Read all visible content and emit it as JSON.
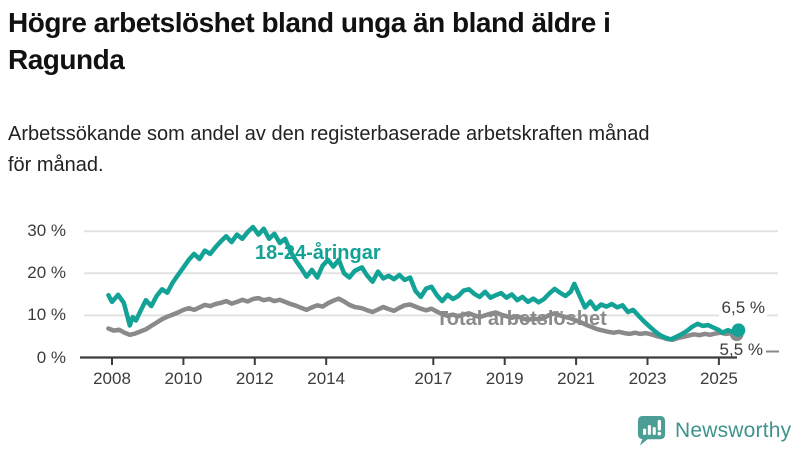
{
  "header": {
    "title_lines": [
      "Högre arbetslöshet bland unga än bland äldre i",
      "Ragunda"
    ],
    "subtitle_lines": [
      "Arbetssökande som andel av den registerbaserade arbetskraften månad",
      "för månad."
    ]
  },
  "chart_data": {
    "type": "line",
    "title": "Högre arbetslöshet bland unga än bland äldre i Ragunda",
    "subtitle": "Arbetssökande som andel av den registerbaserade arbetskraften månad för månad.",
    "unit": "%",
    "grid": "horizontal",
    "legend_position": "inline-labels",
    "axis_color": "#3c3c3c",
    "grid_color": "#e2e2e2",
    "ylim": [
      0,
      32
    ],
    "xlim": [
      2007.8,
      2025.7
    ],
    "y_ticks": [
      0,
      10,
      20,
      30
    ],
    "y_tick_labels": [
      "0 %",
      "10 %",
      "20 %",
      "30 %"
    ],
    "x_ticks": [
      2008,
      2010,
      2012,
      2014,
      2017,
      2019,
      2021,
      2023,
      2025
    ],
    "x_tick_labels": [
      "2008",
      "2010",
      "2012",
      "2014",
      "2017",
      "2019",
      "2021",
      "2023",
      "2025"
    ],
    "series": [
      {
        "name": "18-24-åringar",
        "color": "#12a296",
        "end_label": "6,5 %",
        "end_value": 6.5,
        "points": [
          [
            2007.9,
            14.8
          ],
          [
            2008.0,
            13.2
          ],
          [
            2008.17,
            14.9
          ],
          [
            2008.33,
            13.0
          ],
          [
            2008.5,
            7.6
          ],
          [
            2008.58,
            9.6
          ],
          [
            2008.67,
            8.8
          ],
          [
            2008.83,
            11.6
          ],
          [
            2008.95,
            13.6
          ],
          [
            2009.1,
            12.2
          ],
          [
            2009.25,
            14.6
          ],
          [
            2009.4,
            16.2
          ],
          [
            2009.55,
            15.4
          ],
          [
            2009.7,
            17.8
          ],
          [
            2009.85,
            19.6
          ],
          [
            2010.0,
            21.4
          ],
          [
            2010.15,
            23.2
          ],
          [
            2010.3,
            24.6
          ],
          [
            2010.45,
            23.4
          ],
          [
            2010.6,
            25.4
          ],
          [
            2010.75,
            24.6
          ],
          [
            2010.9,
            26.2
          ],
          [
            2011.05,
            27.6
          ],
          [
            2011.2,
            28.8
          ],
          [
            2011.35,
            27.4
          ],
          [
            2011.5,
            29.2
          ],
          [
            2011.65,
            28.2
          ],
          [
            2011.8,
            29.8
          ],
          [
            2011.95,
            31.0
          ],
          [
            2012.1,
            29.2
          ],
          [
            2012.25,
            30.6
          ],
          [
            2012.4,
            28.2
          ],
          [
            2012.55,
            29.4
          ],
          [
            2012.7,
            27.2
          ],
          [
            2012.85,
            28.2
          ],
          [
            2013.0,
            25.2
          ],
          [
            2013.15,
            23.0
          ],
          [
            2013.3,
            21.2
          ],
          [
            2013.45,
            19.2
          ],
          [
            2013.6,
            20.8
          ],
          [
            2013.75,
            19.0
          ],
          [
            2013.9,
            21.8
          ],
          [
            2014.05,
            23.2
          ],
          [
            2014.2,
            21.6
          ],
          [
            2014.35,
            23.2
          ],
          [
            2014.5,
            20.0
          ],
          [
            2014.65,
            19.0
          ],
          [
            2014.8,
            20.6
          ],
          [
            2015.0,
            21.4
          ],
          [
            2015.15,
            19.4
          ],
          [
            2015.3,
            18.0
          ],
          [
            2015.45,
            20.4
          ],
          [
            2015.6,
            18.8
          ],
          [
            2015.75,
            19.4
          ],
          [
            2015.9,
            18.6
          ],
          [
            2016.05,
            19.6
          ],
          [
            2016.2,
            18.4
          ],
          [
            2016.35,
            19.0
          ],
          [
            2016.5,
            15.8
          ],
          [
            2016.65,
            14.4
          ],
          [
            2016.8,
            16.4
          ],
          [
            2016.95,
            16.8
          ],
          [
            2017.1,
            14.8
          ],
          [
            2017.25,
            13.4
          ],
          [
            2017.4,
            14.9
          ],
          [
            2017.55,
            13.9
          ],
          [
            2017.7,
            14.6
          ],
          [
            2017.85,
            15.9
          ],
          [
            2018.0,
            16.2
          ],
          [
            2018.15,
            15.1
          ],
          [
            2018.3,
            14.4
          ],
          [
            2018.45,
            15.6
          ],
          [
            2018.6,
            14.2
          ],
          [
            2018.75,
            14.8
          ],
          [
            2018.9,
            15.3
          ],
          [
            2019.05,
            14.2
          ],
          [
            2019.2,
            15.0
          ],
          [
            2019.35,
            13.6
          ],
          [
            2019.5,
            14.4
          ],
          [
            2019.65,
            13.2
          ],
          [
            2019.8,
            14.0
          ],
          [
            2019.95,
            13.1
          ],
          [
            2020.1,
            13.9
          ],
          [
            2020.25,
            15.2
          ],
          [
            2020.4,
            16.3
          ],
          [
            2020.55,
            15.4
          ],
          [
            2020.7,
            14.6
          ],
          [
            2020.85,
            15.6
          ],
          [
            2020.95,
            17.5
          ],
          [
            2021.1,
            14.6
          ],
          [
            2021.25,
            11.9
          ],
          [
            2021.4,
            13.3
          ],
          [
            2021.55,
            11.5
          ],
          [
            2021.7,
            12.6
          ],
          [
            2021.85,
            12.1
          ],
          [
            2022.0,
            12.7
          ],
          [
            2022.15,
            11.9
          ],
          [
            2022.3,
            12.4
          ],
          [
            2022.45,
            10.8
          ],
          [
            2022.6,
            11.3
          ],
          [
            2022.75,
            9.9
          ],
          [
            2022.9,
            8.6
          ],
          [
            2023.05,
            7.4
          ],
          [
            2023.2,
            6.3
          ],
          [
            2023.35,
            5.3
          ],
          [
            2023.5,
            4.7
          ],
          [
            2023.65,
            4.3
          ],
          [
            2023.8,
            4.9
          ],
          [
            2023.95,
            5.5
          ],
          [
            2024.1,
            6.3
          ],
          [
            2024.25,
            7.3
          ],
          [
            2024.4,
            8.0
          ],
          [
            2024.55,
            7.5
          ],
          [
            2024.7,
            7.7
          ],
          [
            2024.85,
            7.1
          ],
          [
            2025.0,
            6.5
          ],
          [
            2025.1,
            5.9
          ],
          [
            2025.25,
            6.5
          ],
          [
            2025.4,
            6.0
          ],
          [
            2025.55,
            6.5
          ]
        ]
      },
      {
        "name": "Total arbetslöshet",
        "color": "#8a8a8a",
        "end_label": "5,5 %",
        "end_value": 5.5,
        "points": [
          [
            2007.9,
            6.9
          ],
          [
            2008.05,
            6.4
          ],
          [
            2008.2,
            6.6
          ],
          [
            2008.35,
            5.9
          ],
          [
            2008.5,
            5.4
          ],
          [
            2008.65,
            5.7
          ],
          [
            2008.8,
            6.2
          ],
          [
            2008.95,
            6.7
          ],
          [
            2009.1,
            7.5
          ],
          [
            2009.25,
            8.3
          ],
          [
            2009.4,
            9.1
          ],
          [
            2009.55,
            9.7
          ],
          [
            2009.7,
            10.2
          ],
          [
            2009.85,
            10.7
          ],
          [
            2010.0,
            11.3
          ],
          [
            2010.15,
            11.7
          ],
          [
            2010.3,
            11.3
          ],
          [
            2010.45,
            11.9
          ],
          [
            2010.6,
            12.5
          ],
          [
            2010.75,
            12.2
          ],
          [
            2010.9,
            12.7
          ],
          [
            2011.05,
            13.0
          ],
          [
            2011.2,
            13.4
          ],
          [
            2011.35,
            12.8
          ],
          [
            2011.5,
            13.2
          ],
          [
            2011.65,
            13.7
          ],
          [
            2011.8,
            13.3
          ],
          [
            2011.95,
            13.9
          ],
          [
            2012.1,
            14.1
          ],
          [
            2012.25,
            13.6
          ],
          [
            2012.4,
            13.9
          ],
          [
            2012.55,
            13.4
          ],
          [
            2012.7,
            13.7
          ],
          [
            2012.85,
            13.2
          ],
          [
            2013.0,
            12.7
          ],
          [
            2013.15,
            12.3
          ],
          [
            2013.3,
            11.8
          ],
          [
            2013.45,
            11.3
          ],
          [
            2013.6,
            11.9
          ],
          [
            2013.75,
            12.4
          ],
          [
            2013.9,
            12.1
          ],
          [
            2014.05,
            12.9
          ],
          [
            2014.2,
            13.5
          ],
          [
            2014.35,
            14.0
          ],
          [
            2014.5,
            13.3
          ],
          [
            2014.65,
            12.5
          ],
          [
            2014.8,
            12.0
          ],
          [
            2015.0,
            11.7
          ],
          [
            2015.15,
            11.2
          ],
          [
            2015.3,
            10.8
          ],
          [
            2015.45,
            11.4
          ],
          [
            2015.6,
            12.0
          ],
          [
            2015.75,
            11.5
          ],
          [
            2015.9,
            11.1
          ],
          [
            2016.05,
            11.8
          ],
          [
            2016.2,
            12.4
          ],
          [
            2016.35,
            12.6
          ],
          [
            2016.5,
            12.1
          ],
          [
            2016.65,
            11.6
          ],
          [
            2016.8,
            11.2
          ],
          [
            2016.95,
            11.6
          ],
          [
            2017.1,
            10.9
          ],
          [
            2017.25,
            10.3
          ],
          [
            2017.4,
            9.9
          ],
          [
            2017.55,
            10.2
          ],
          [
            2017.7,
            9.8
          ],
          [
            2017.85,
            10.2
          ],
          [
            2018.0,
            10.5
          ],
          [
            2018.15,
            10.0
          ],
          [
            2018.3,
            9.6
          ],
          [
            2018.45,
            10.0
          ],
          [
            2018.6,
            10.4
          ],
          [
            2018.75,
            10.7
          ],
          [
            2018.9,
            10.2
          ],
          [
            2019.05,
            9.8
          ],
          [
            2019.2,
            9.4
          ],
          [
            2019.35,
            9.8
          ],
          [
            2019.5,
            9.3
          ],
          [
            2019.65,
            8.9
          ],
          [
            2019.8,
            9.3
          ],
          [
            2019.95,
            9.0
          ],
          [
            2020.1,
            9.4
          ],
          [
            2020.25,
            10.1
          ],
          [
            2020.4,
            10.5
          ],
          [
            2020.55,
            10.0
          ],
          [
            2020.7,
            9.6
          ],
          [
            2020.85,
            9.3
          ],
          [
            2021.0,
            8.8
          ],
          [
            2021.15,
            8.3
          ],
          [
            2021.3,
            7.7
          ],
          [
            2021.45,
            7.2
          ],
          [
            2021.6,
            6.7
          ],
          [
            2021.75,
            6.4
          ],
          [
            2021.9,
            6.1
          ],
          [
            2022.05,
            5.9
          ],
          [
            2022.2,
            6.1
          ],
          [
            2022.35,
            5.8
          ],
          [
            2022.5,
            5.6
          ],
          [
            2022.65,
            5.9
          ],
          [
            2022.8,
            5.6
          ],
          [
            2022.95,
            5.8
          ],
          [
            2023.1,
            5.5
          ],
          [
            2023.25,
            5.1
          ],
          [
            2023.4,
            4.8
          ],
          [
            2023.55,
            4.4
          ],
          [
            2023.7,
            4.2
          ],
          [
            2023.85,
            4.6
          ],
          [
            2024.0,
            4.9
          ],
          [
            2024.15,
            5.2
          ],
          [
            2024.3,
            5.5
          ],
          [
            2024.45,
            5.3
          ],
          [
            2024.6,
            5.6
          ],
          [
            2024.75,
            5.4
          ],
          [
            2024.9,
            5.7
          ],
          [
            2025.05,
            5.9
          ],
          [
            2025.2,
            5.6
          ],
          [
            2025.35,
            5.8
          ],
          [
            2025.5,
            5.5
          ]
        ]
      }
    ]
  },
  "footer": {
    "brand": "Newsworthy",
    "brand_color": "#3e948c",
    "logo_icon": "bar-chart-speech-bubble-icon"
  }
}
